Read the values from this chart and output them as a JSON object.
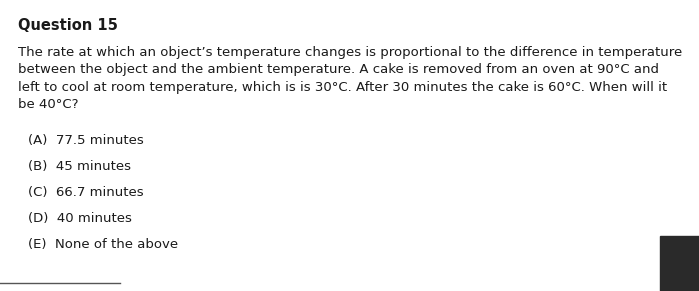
{
  "title": "Question 15",
  "body": "The rate at which an object’s temperature changes is proportional to the difference in temperature\nbetween the object and the ambient temperature. A cake is removed from an oven at 90°C and\nleft to cool at room temperature, which is is 30°C. After 30 minutes the cake is 60°C. When will it\nbe 40°C?",
  "options": [
    "(A)  77.5 minutes",
    "(B)  45 minutes",
    "(C)  66.7 minutes",
    "(D)  40 minutes",
    "(E)  None of the above"
  ],
  "bg_color": "#ffffff",
  "text_color": "#1a1a1a",
  "title_fontsize": 10.5,
  "body_fontsize": 9.5,
  "option_fontsize": 9.5,
  "dark_rect_color": "#2a2a2a"
}
